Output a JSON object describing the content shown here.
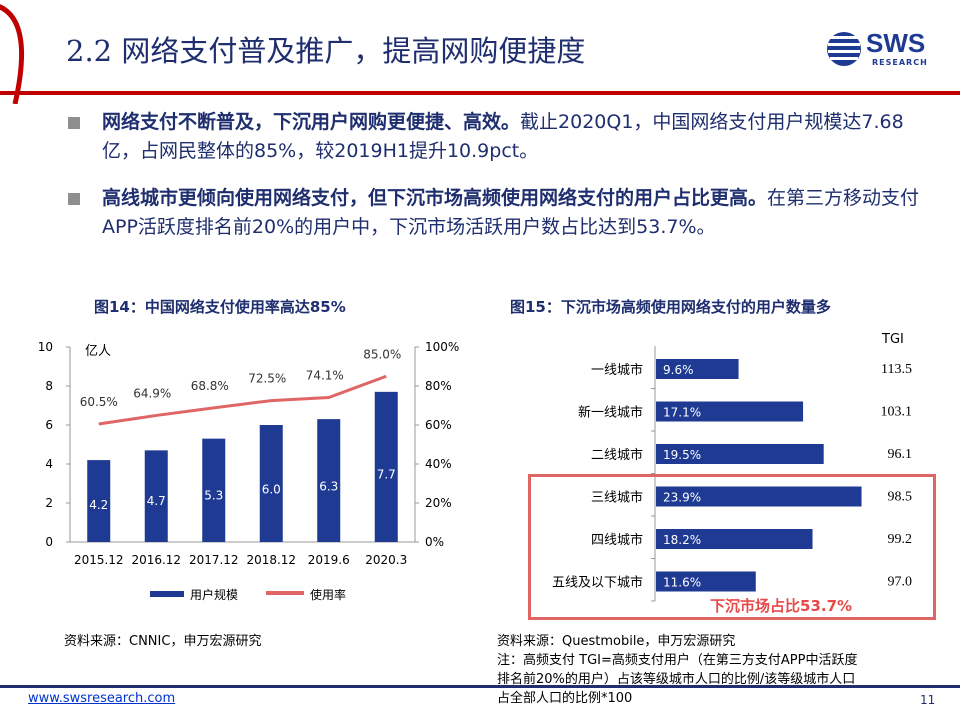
{
  "header": {
    "title": "2.2 网络支付普及推广，提高网购便捷度",
    "logo_text": "SWS",
    "logo_sub": "RESEARCH"
  },
  "bullets": [
    {
      "strong": "网络支付不断普及，下沉用户网购更便捷、高效。",
      "text": "截止2020Q1，中国网络支付用户规模达7.68亿，占网民整体的85%，较2019H1提升10.9pct。"
    },
    {
      "strong": "高线城市更倾向使用网络支付，但下沉市场高频使用网络支付的用户占比更高。",
      "text": "在第三方移动支付APP活跃度排名前20%的用户中，下沉市场活跃用户数占比达到53.7%。"
    }
  ],
  "chart14": {
    "title": "图14：中国网络支付使用率高达85%",
    "unit": "亿人",
    "legend_bar": "用户规模",
    "legend_line": "使用率",
    "source": "资料来源：CNNIC，申万宏源研究"
  },
  "chart15": {
    "title": "图15：下沉市场高频使用网络支付的用户数量多",
    "tgi_header": "TGI",
    "highlight_label": "下沉市场占比53.7%",
    "source_lines": [
      "资料来源：Questmobile，申万宏源研究",
      "注：高频支付 TGI=高频支付用户（在第三方支付APP中活跃度",
      "排名前20%的用户）占该等级城市人口的比例/该等级城市人口",
      "占全部人口的比例*100"
    ]
  },
  "footer": {
    "url": "www.swsresearch.com",
    "page": "11"
  },
  "colors": {
    "navy": "#1f2e6e",
    "bar": "#1f3a93",
    "line": "#e06666",
    "red": "#c00000",
    "highlight": "#e06666"
  },
  "chart_data": [
    {
      "type": "bar",
      "title": "图14：中国网络支付使用率高达85%",
      "categories": [
        "2015.12",
        "2016.12",
        "2017.12",
        "2018.12",
        "2019.6",
        "2020.3"
      ],
      "series": [
        {
          "name": "用户规模",
          "type": "bar",
          "axis": "left",
          "values": [
            4.2,
            4.7,
            5.3,
            6.0,
            6.3,
            7.7
          ],
          "labels": [
            "4.2",
            "4.7",
            "5.3",
            "6.0",
            "6.3",
            "7.7"
          ]
        },
        {
          "name": "使用率",
          "type": "line",
          "axis": "right",
          "values": [
            60.5,
            64.9,
            68.8,
            72.5,
            74.1,
            85.0
          ],
          "labels": [
            "60.5%",
            "64.9%",
            "68.8%",
            "72.5%",
            "74.1%",
            "85.0%"
          ]
        }
      ],
      "ylim": [
        0,
        10
      ],
      "yticks": [
        "0",
        "2",
        "4",
        "6",
        "8",
        "10"
      ],
      "ylim_right": [
        0,
        100
      ],
      "yticks_right": [
        "0%",
        "20%",
        "40%",
        "60%",
        "80%",
        "100%"
      ],
      "ylabel": "亿人",
      "legend": "bottom"
    },
    {
      "type": "bar",
      "orientation": "horizontal",
      "title": "图15：下沉市场高频使用网络支付的用户数量多",
      "categories": [
        "一线城市",
        "新一线城市",
        "二线城市",
        "三线城市",
        "四线城市",
        "五线及以下城市"
      ],
      "values": [
        9.6,
        17.1,
        19.5,
        23.9,
        18.2,
        11.6
      ],
      "labels": [
        "9.6%",
        "17.1%",
        "19.5%",
        "23.9%",
        "18.2%",
        "11.6%"
      ],
      "tgi": [
        "113.5",
        "103.1",
        "96.1",
        "98.5",
        "99.2",
        "97.0"
      ],
      "xlim": [
        0,
        25
      ]
    }
  ]
}
